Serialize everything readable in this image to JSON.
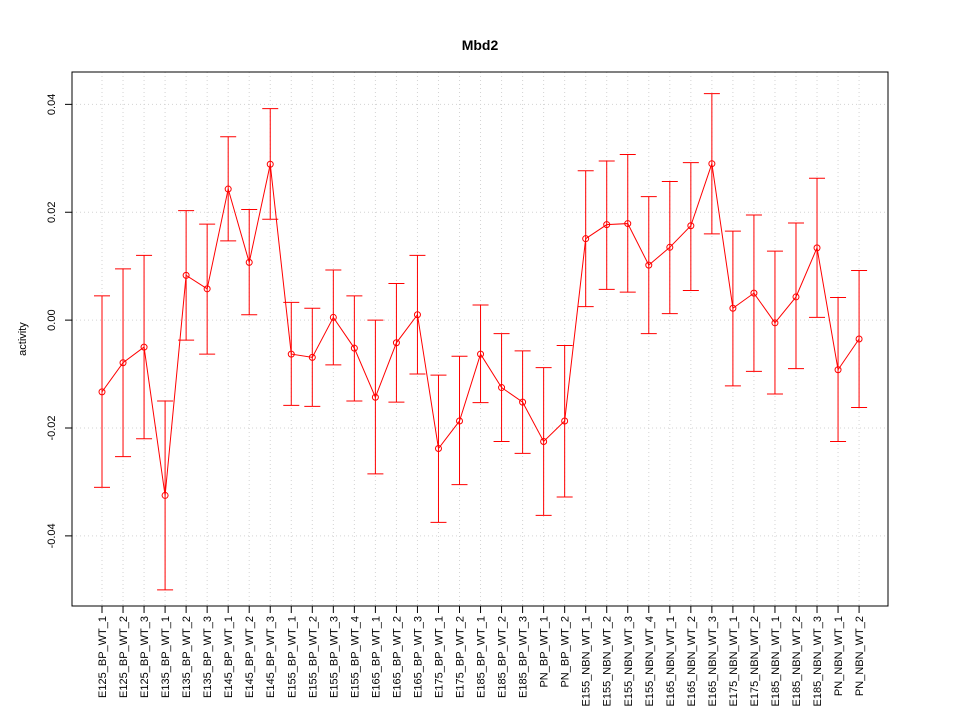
{
  "chart_data": {
    "type": "line",
    "title": "Mbd2",
    "xlabel": "",
    "ylabel": "activity",
    "ylim": [
      -0.053,
      0.046
    ],
    "yticks": [
      -0.04,
      -0.02,
      0.0,
      0.02,
      0.04
    ],
    "ytick_labels": [
      "-0.04",
      "-0.02",
      "0.00",
      "0.02",
      "0.04"
    ],
    "grid": true,
    "error_bars": true,
    "colors": {
      "series": "#ff0000",
      "grid": "#d3d3d3",
      "axis": "#000000"
    },
    "categories": [
      "E125_BP_WT_1",
      "E125_BP_WT_2",
      "E125_BP_WT_3",
      "E135_BP_WT_1",
      "E135_BP_WT_2",
      "E135_BP_WT_3",
      "E145_BP_WT_1",
      "E145_BP_WT_2",
      "E145_BP_WT_3",
      "E155_BP_WT_1",
      "E155_BP_WT_2",
      "E155_BP_WT_3",
      "E155_BP_WT_4",
      "E165_BP_WT_1",
      "E165_BP_WT_2",
      "E165_BP_WT_3",
      "E175_BP_WT_1",
      "E175_BP_WT_2",
      "E185_BP_WT_1",
      "E185_BP_WT_2",
      "E185_BP_WT_3",
      "PN_BP_WT_1",
      "PN_BP_WT_2",
      "E155_NBN_WT_1",
      "E155_NBN_WT_2",
      "E155_NBN_WT_3",
      "E155_NBN_WT_4",
      "E165_NBN_WT_1",
      "E165_NBN_WT_2",
      "E165_NBN_WT_3",
      "E175_NBN_WT_1",
      "E175_NBN_WT_2",
      "E185_NBN_WT_1",
      "E185_NBN_WT_2",
      "E185_NBN_WT_3",
      "PN_NBN_WT_1",
      "PN_NBN_WT_2"
    ],
    "series": [
      {
        "values": [
          -0.0133,
          -0.0079,
          -0.005,
          -0.0325,
          0.0083,
          0.0058,
          0.0243,
          0.0107,
          0.0289,
          -0.0063,
          -0.0069,
          0.0005,
          -0.0052,
          -0.0143,
          -0.0042,
          0.001,
          -0.0238,
          -0.0187,
          -0.0063,
          -0.0125,
          -0.0152,
          -0.0225,
          -0.0187,
          0.0151,
          0.0177,
          0.0179,
          0.0102,
          0.0135,
          0.0175,
          0.029,
          0.0022,
          0.005,
          -0.0005,
          0.0043,
          0.0134,
          -0.0092,
          -0.0035
        ],
        "lower": [
          -0.031,
          -0.0253,
          -0.022,
          -0.05,
          -0.0037,
          -0.0063,
          0.0147,
          0.001,
          0.0187,
          -0.0158,
          -0.016,
          -0.0083,
          -0.015,
          -0.0285,
          -0.0152,
          -0.01,
          -0.0375,
          -0.0305,
          -0.0153,
          -0.0225,
          -0.0247,
          -0.0362,
          -0.0328,
          0.0025,
          0.0057,
          0.0052,
          -0.0025,
          0.0012,
          0.0055,
          0.016,
          -0.0122,
          -0.0095,
          -0.0137,
          -0.009,
          0.0005,
          -0.0225,
          -0.0162
        ],
        "upper": [
          0.0045,
          0.0095,
          0.012,
          -0.015,
          0.0203,
          0.0178,
          0.034,
          0.0205,
          0.0392,
          0.0033,
          0.0022,
          0.0093,
          0.0045,
          0.0,
          0.0068,
          0.012,
          -0.0102,
          -0.0067,
          0.0028,
          -0.0025,
          -0.0057,
          -0.0088,
          -0.0047,
          0.0277,
          0.0295,
          0.0307,
          0.0229,
          0.0257,
          0.0292,
          0.042,
          0.0165,
          0.0195,
          0.0128,
          0.018,
          0.0263,
          0.0042,
          0.0092
        ]
      }
    ]
  }
}
